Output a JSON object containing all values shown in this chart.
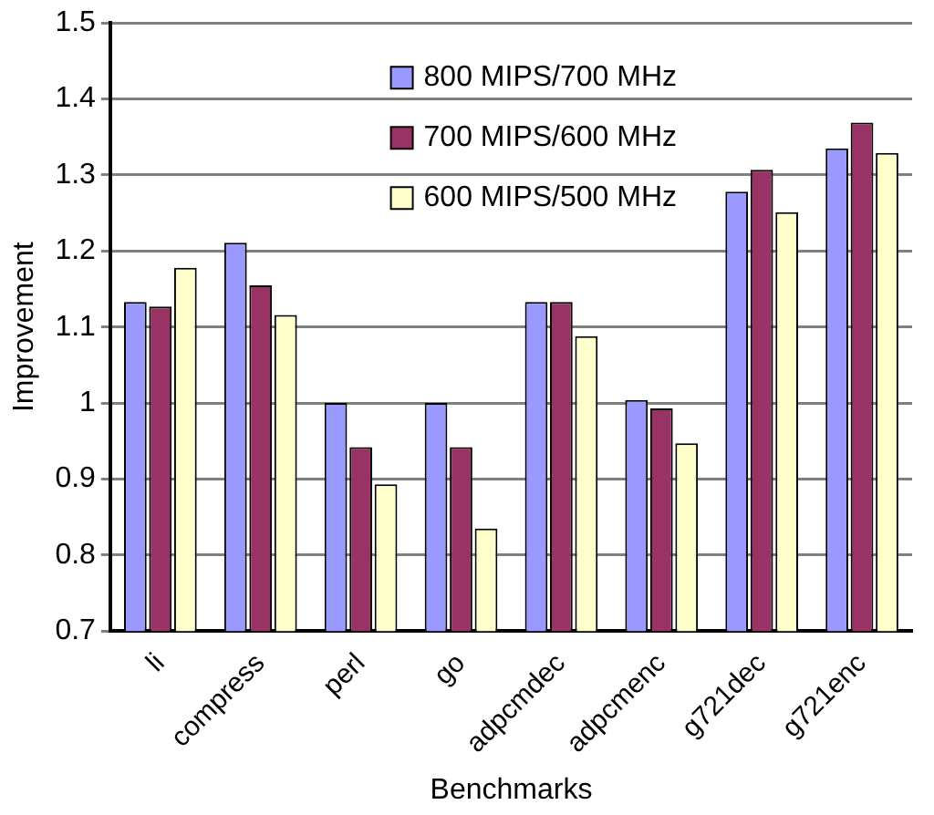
{
  "chart_data": {
    "type": "bar",
    "xlabel": "Benchmarks",
    "ylabel": "Improvement",
    "categories": [
      "li",
      "compress",
      "perl",
      "go",
      "adpcmdec",
      "adpcmenc",
      "g721dec",
      "g721enc"
    ],
    "series": [
      {
        "name": "800 MIPS/700 MHz",
        "color": "#9999ff",
        "values": [
          1.133,
          1.211,
          1.0,
          1.0,
          1.133,
          1.004,
          1.278,
          1.335
        ]
      },
      {
        "name": "700 MIPS/600 MHz",
        "color": "#993366",
        "values": [
          1.127,
          1.155,
          0.942,
          0.942,
          1.133,
          0.993,
          1.307,
          1.369
        ]
      },
      {
        "name": "600 MIPS/500 MHz",
        "color": "#ffffcc",
        "values": [
          1.178,
          1.116,
          0.893,
          0.835,
          1.088,
          0.947,
          1.251,
          1.329
        ]
      }
    ],
    "ylim": [
      0.7,
      1.5
    ],
    "yticks": [
      0.7,
      0.8,
      0.9,
      1,
      1.1,
      1.2,
      1.3,
      1.4,
      1.5
    ],
    "grid": "y",
    "legend": "top"
  }
}
